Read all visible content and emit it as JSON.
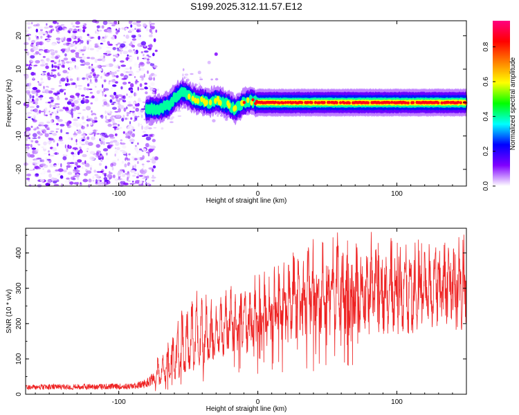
{
  "title": "S199.2025.312.11.57.E12",
  "chart_data": [
    {
      "type": "heatmap",
      "xlabel": "Height of straight line (km)",
      "ylabel": "Frequency (Hz)",
      "xlim": [
        -167,
        150
      ],
      "ylim": [
        -25,
        24.5
      ],
      "xticks": [
        -100,
        0,
        100
      ],
      "yticks": [
        -20,
        -10,
        0,
        10,
        20
      ],
      "noise_region_x": [
        -167,
        -75
      ],
      "signal_track": {
        "x": [
          -80,
          -72,
          -65,
          -58,
          -54,
          -50,
          -45,
          -40,
          -35,
          -30,
          -25,
          -20,
          -16,
          -10,
          -5,
          0,
          20,
          60,
          100,
          150
        ],
        "freq": [
          -2,
          -2,
          -1,
          2,
          3,
          2,
          1,
          0.5,
          0,
          1,
          0,
          -1,
          -2,
          0,
          0.5,
          0,
          0,
          0,
          0,
          0
        ]
      },
      "outlier_points": [
        [
          -30,
          14.5
        ],
        [
          -35,
          12
        ],
        [
          -42,
          9
        ]
      ],
      "colorbar": {
        "label": "Normalized spectral amplitude",
        "range": [
          0,
          0.95
        ],
        "ticks": [
          "0.0",
          "0.2",
          "0.4",
          "0.6",
          "0.8"
        ],
        "colors": [
          "#ffffff",
          "#8000ff",
          "#0000ff",
          "#00ffff",
          "#00ff00",
          "#ffff00",
          "#ff8000",
          "#ff0000",
          "#ff0080"
        ]
      }
    },
    {
      "type": "line",
      "xlabel": "Height of straight line (km)",
      "ylabel": "SNR (10 * v/v)",
      "xlim": [
        -167,
        150
      ],
      "ylim": [
        0,
        470
      ],
      "xticks": [
        -100,
        0,
        100
      ],
      "yticks": [
        0,
        100,
        200,
        300,
        400
      ],
      "color": "#ee2222",
      "envelope": {
        "x": [
          -167,
          -90,
          -80,
          -70,
          -60,
          -50,
          -40,
          -30,
          -20,
          -10,
          0,
          10,
          20,
          30,
          40,
          60,
          80,
          90,
          100,
          120,
          150
        ],
        "base": [
          12,
          14,
          18,
          40,
          70,
          100,
          140,
          160,
          190,
          200,
          215,
          245,
          265,
          280,
          280,
          290,
          300,
          300,
          300,
          300,
          320
        ],
        "peak": [
          38,
          42,
          60,
          130,
          220,
          300,
          320,
          300,
          340,
          350,
          360,
          380,
          420,
          440,
          460,
          450,
          460,
          455,
          440,
          440,
          460
        ]
      }
    }
  ]
}
